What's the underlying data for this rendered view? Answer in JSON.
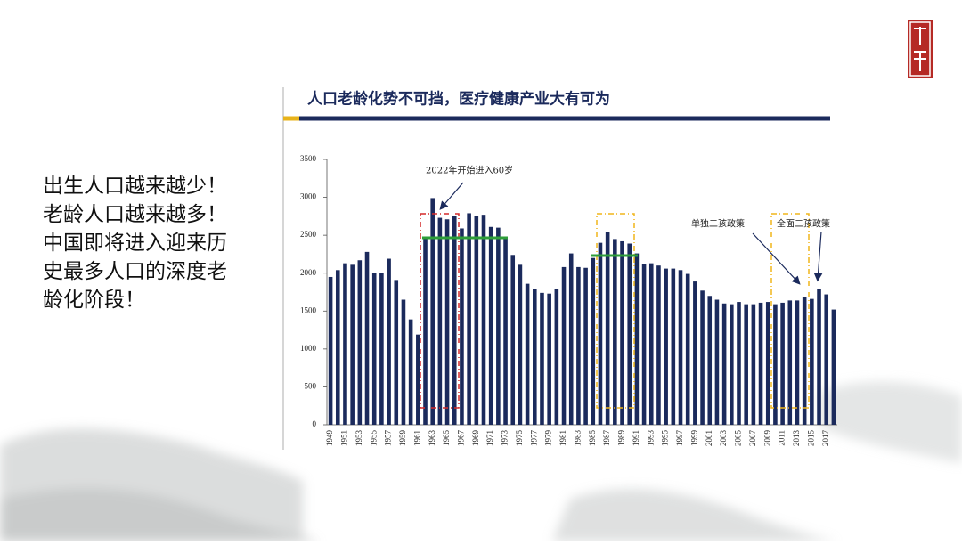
{
  "side_text": [
    "出生人口越来越少！",
    "老龄人口越来越多！",
    "中国即将进入迎来历",
    "史最多人口的深度老",
    "龄化阶段！"
  ],
  "chart_data": {
    "type": "bar",
    "title": "人口老龄化势不可挡，医疗健康产业大有可为",
    "annotations": [
      "2022年开始进入60岁",
      "单独二孩政策",
      "全面二孩政策"
    ],
    "categories": [
      "1949",
      null,
      "1951",
      null,
      "1953",
      null,
      "1955",
      null,
      "1957",
      null,
      "1959",
      null,
      "1961",
      null,
      "1963",
      null,
      "1965",
      null,
      "1967",
      null,
      "1969",
      null,
      "1971",
      null,
      "1973",
      null,
      "1975",
      null,
      "1977",
      null,
      "1979",
      null,
      "1981",
      null,
      "1983",
      null,
      "1985",
      null,
      "1987",
      null,
      "1989",
      null,
      "1991",
      null,
      "1993",
      null,
      "1995",
      null,
      "1997",
      null,
      "1999",
      null,
      "2001",
      null,
      "2003",
      null,
      "2005",
      null,
      "2007",
      null,
      "2009",
      null,
      "2011",
      null,
      "2013",
      null,
      "2015",
      null,
      "2017",
      null
    ],
    "values": [
      1950,
      2040,
      2130,
      2110,
      2170,
      2280,
      2000,
      2000,
      2190,
      1910,
      1650,
      1390,
      1190,
      2460,
      2990,
      2730,
      2710,
      2760,
      2590,
      2790,
      2750,
      2770,
      2610,
      2600,
      2460,
      2240,
      2110,
      1860,
      1790,
      1740,
      1730,
      1790,
      2080,
      2260,
      2080,
      2070,
      2200,
      2400,
      2540,
      2450,
      2420,
      2390,
      2260,
      2120,
      2130,
      2100,
      2060,
      2060,
      2040,
      1990,
      1890,
      1770,
      1700,
      1650,
      1600,
      1590,
      1620,
      1590,
      1590,
      1610,
      1620,
      1590,
      1610,
      1640,
      1640,
      1690,
      1660,
      1790,
      1720,
      1520
    ],
    "color": "#1b2a5c",
    "ylim": [
      0,
      3500
    ],
    "yticks": [
      0,
      500,
      1000,
      1500,
      2000,
      2500,
      3000,
      3500
    ]
  }
}
